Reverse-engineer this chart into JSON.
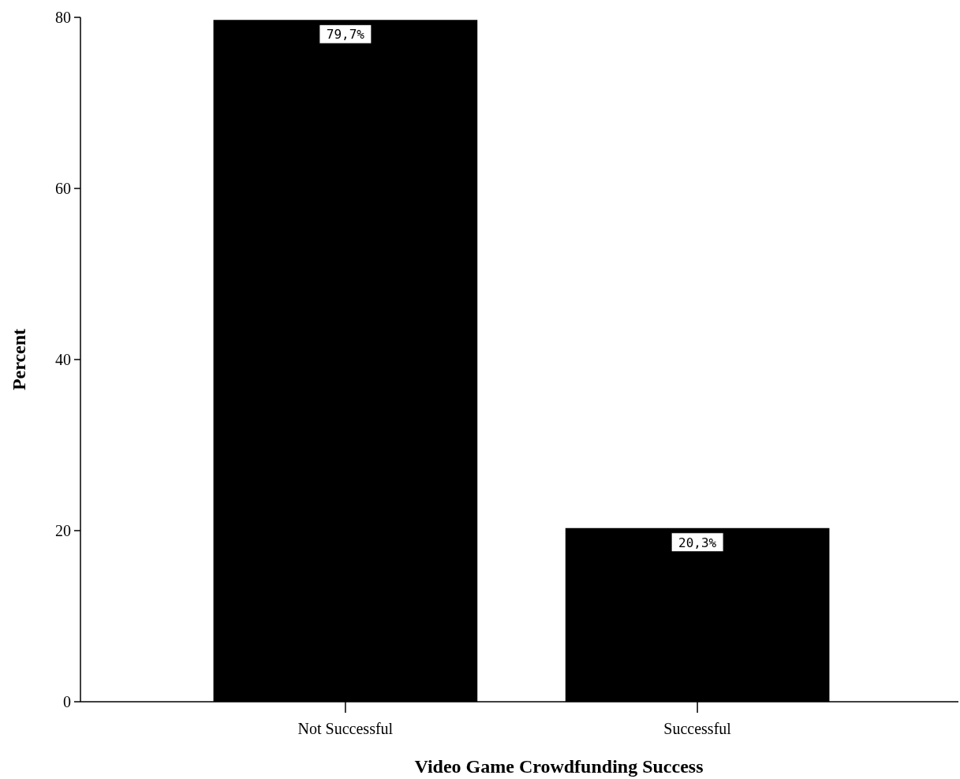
{
  "chart_data": {
    "type": "bar",
    "xlabel": "Video Game Crowdfunding Success",
    "ylabel": "Percent",
    "categories": [
      "Not Successful",
      "Successful"
    ],
    "values": [
      79.7,
      20.3
    ],
    "value_labels": [
      "79,7%",
      "20,3%"
    ],
    "color": "#000000",
    "ylim": [
      0,
      80
    ],
    "yticks": [
      0,
      20,
      40,
      60,
      80
    ],
    "grid": false
  }
}
